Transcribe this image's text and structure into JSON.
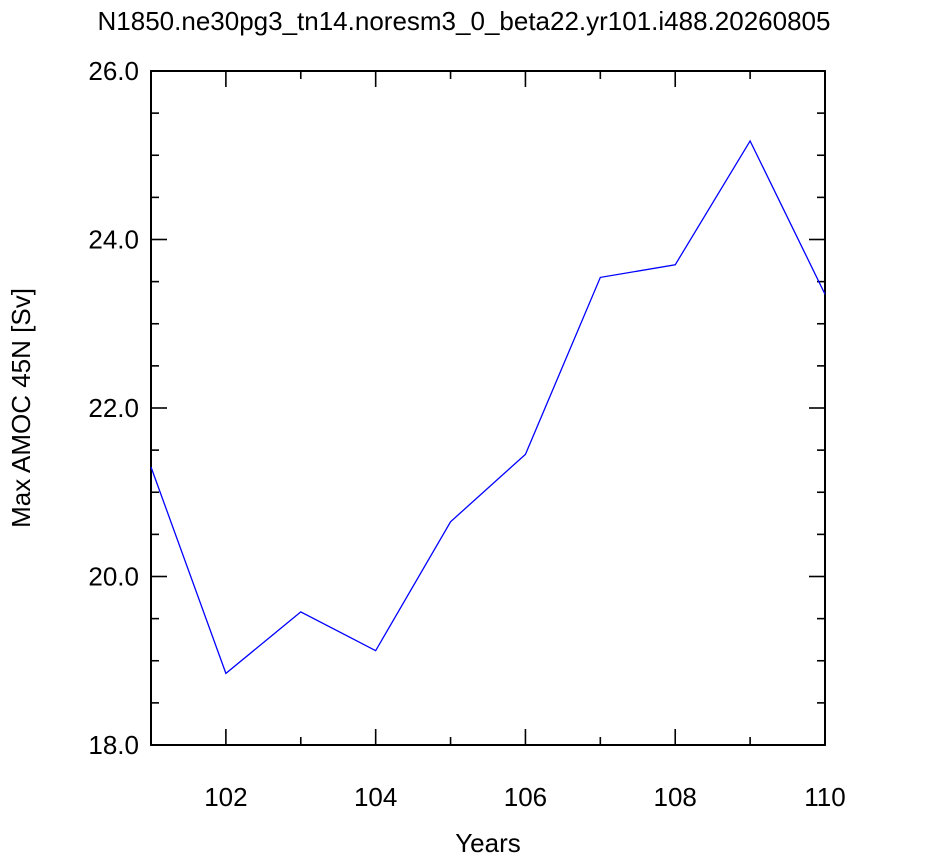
{
  "chart_data": {
    "type": "line",
    "title": "N1850.ne30pg3_tn14.noresm3_0_beta22.yr101.i488.20260805",
    "xlabel": "Years",
    "ylabel": "Max AMOC 45N [Sv]",
    "xlim": [
      101,
      110
    ],
    "ylim": [
      18.0,
      26.0
    ],
    "x_ticks": [
      102,
      104,
      106,
      108,
      110
    ],
    "x_tick_labels": [
      "102",
      "104",
      "106",
      "108",
      "110"
    ],
    "y_ticks": [
      18.0,
      20.0,
      22.0,
      24.0,
      26.0
    ],
    "y_tick_labels": [
      "18.0",
      "20.0",
      "22.0",
      "24.0",
      "26.0"
    ],
    "grid": false,
    "series": [
      {
        "color": "#0000ff",
        "x": [
          101,
          102,
          103,
          104,
          105,
          106,
          107,
          108,
          109,
          110
        ],
        "values": [
          21.3,
          18.85,
          19.58,
          19.12,
          20.65,
          21.45,
          23.55,
          23.7,
          25.17,
          23.35
        ]
      }
    ]
  }
}
